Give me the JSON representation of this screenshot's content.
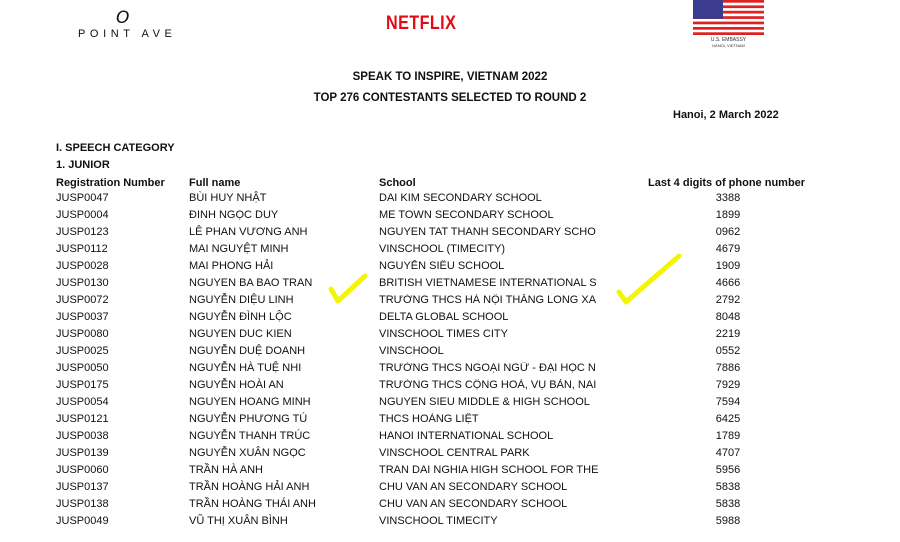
{
  "logos": {
    "pointave": "POINT AVE",
    "pointave_mark": "O",
    "netflix": "NETFLIX",
    "embassy_line1": "U.S. EMBASSY",
    "embassy_line2": "HANOI, VIETNAM"
  },
  "title": "SPEAK TO INSPIRE, VIETNAM 2022",
  "subtitle": "TOP 276 CONTESTANTS SELECTED TO ROUND 2",
  "date": "Hanoi, 2 March 2022",
  "section": "I. SPEECH CATEGORY",
  "subsection": "1. JUNIOR",
  "columns": [
    "Registration Number",
    "Full name",
    "School",
    "Last 4 digits of phone number"
  ],
  "rows": [
    [
      "JUSP0047",
      "BÙI HUY NHẬT",
      "DAI KIM SECONDARY SCHOOL",
      "3388"
    ],
    [
      "JUSP0004",
      "ĐINH NGỌC DUY",
      "ME TOWN SECONDARY SCHOOL",
      "1899"
    ],
    [
      "JUSP0123",
      "LÊ PHAN VƯƠNG ANH",
      "NGUYEN TAT THANH SECONDARY SCHO",
      "0962"
    ],
    [
      "JUSP0112",
      "MAI NGUYỆT MINH",
      "VINSCHOOL (TIMECITY)",
      "4679"
    ],
    [
      "JUSP0028",
      "MAI PHONG HẢI",
      "NGUYỄN SIÊU SCHOOL",
      "1909"
    ],
    [
      "JUSP0130",
      "NGUYEN BA BAO TRAN",
      "BRITISH VIETNAMESE INTERNATIONAL S",
      "4666"
    ],
    [
      "JUSP0072",
      "NGUYỄN DIỆU LINH",
      "TRƯỜNG THCS HÀ NỘI THĂNG LONG XA",
      "2792"
    ],
    [
      "JUSP0037",
      "NGUYỄN ĐÌNH LỘC",
      "DELTA GLOBAL SCHOOL",
      "8048"
    ],
    [
      "JUSP0080",
      "NGUYEN DUC KIEN",
      "VINSCHOOL TIMES CITY",
      "2219"
    ],
    [
      "JUSP0025",
      "NGUYỄN DUỆ DOANH",
      "VINSCHOOL",
      "0552"
    ],
    [
      "JUSP0050",
      "NGUYỄN HÀ TUỆ NHI",
      "TRƯỜNG THCS NGOẠI NGỮ - ĐẠI HỌC N",
      "7886"
    ],
    [
      "JUSP0175",
      "NGUYỄN HOÀI AN",
      "TRƯỜNG THCS CỘNG HOÀ, VỤ BẢN, NAI",
      "7929"
    ],
    [
      "JUSP0054",
      "NGUYEN HOANG MINH",
      "NGUYEN SIEU MIDDLE & HIGH SCHOOL",
      "7594"
    ],
    [
      "JUSP0121",
      "NGUYỄN PHƯƠNG TÚ",
      "THCS HOÀNG LIỆT",
      "6425"
    ],
    [
      "JUSP0038",
      "NGUYỄN THANH TRÚC",
      "HANOI INTERNATIONAL SCHOOL",
      "1789"
    ],
    [
      "JUSP0139",
      "NGUYỄN XUÂN NGỌC",
      "VINSCHOOL CENTRAL PARK",
      "4707"
    ],
    [
      "JUSP0060",
      "TRẦN HÀ ANH",
      "TRAN DAI NGHIA HIGH SCHOOL FOR THE",
      "5956"
    ],
    [
      "JUSP0137",
      "TRẦN HOÀNG HẢI ANH",
      "CHU VAN AN SECONDARY SCHOOL",
      "5838"
    ],
    [
      "JUSP0138",
      "TRẦN HOÀNG THÁI ANH",
      "CHU VAN AN SECONDARY SCHOOL",
      "5838"
    ],
    [
      "JUSP0049",
      "VŨ THỊ XUÂN BÌNH",
      "VINSCHOOL TIMECITY",
      "5988"
    ]
  ],
  "colors": {
    "netflix": "#e50914",
    "highlight": "#f5f500"
  }
}
